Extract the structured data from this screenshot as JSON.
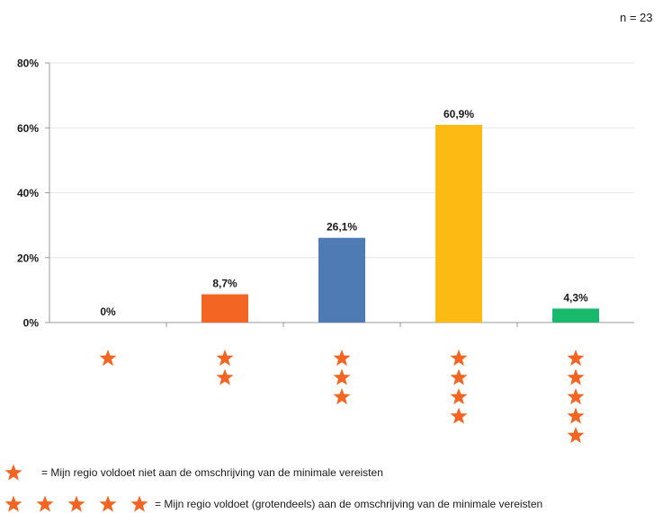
{
  "note": "n = 23",
  "chart_data": {
    "type": "bar",
    "categories": [
      "1",
      "2",
      "3",
      "4",
      "5"
    ],
    "category_stars": [
      1,
      2,
      3,
      4,
      5
    ],
    "values": [
      0,
      8.7,
      26.1,
      60.9,
      4.3
    ],
    "value_labels": [
      "0%",
      "8,7%",
      "26,1%",
      "60,9%",
      "4,3%"
    ],
    "bar_colors": [
      "#F26522",
      "#F26522",
      "#4F7BB4",
      "#FDBA12",
      "#19B96B"
    ],
    "yticks": [
      0,
      20,
      40,
      60,
      80
    ],
    "ytick_labels": [
      "0%",
      "20%",
      "40%",
      "60%",
      "80%"
    ],
    "ylim": [
      0,
      80
    ],
    "grid": true,
    "star_color": "#F26522"
  },
  "legend": [
    {
      "stars": 1,
      "text": "= Mijn  regio voldoet niet aan de omschrijving van de minimale  vereisten"
    },
    {
      "stars": 5,
      "text": "= Mijn  regio voldoet (grotendeels) aan de omschrijving van de minimale  vereisten"
    }
  ]
}
